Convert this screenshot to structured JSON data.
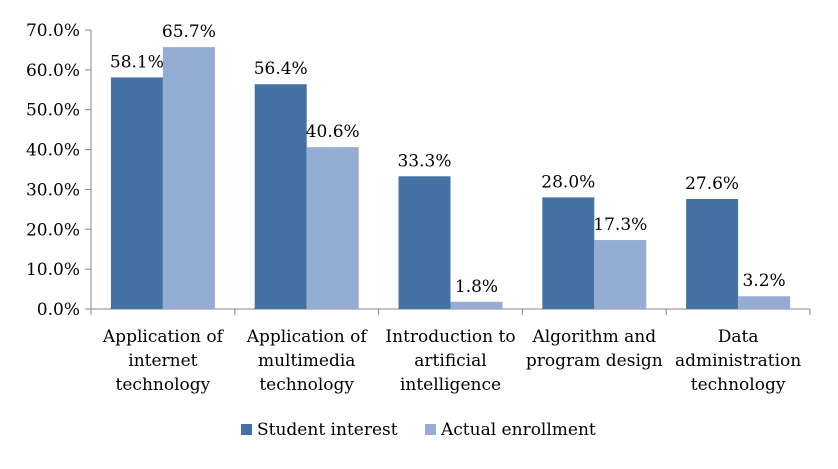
{
  "chart_data": {
    "type": "bar",
    "title": "",
    "xlabel": "",
    "ylabel": "",
    "ylim": [
      0,
      70
    ],
    "yticks": [
      "0.0%",
      "10.0%",
      "20.0%",
      "30.0%",
      "40.0%",
      "50.0%",
      "60.0%",
      "70.0%"
    ],
    "categories": [
      [
        "Application of",
        "internet",
        "technology"
      ],
      [
        "Application of",
        "multimedia",
        "technology"
      ],
      [
        "Introduction to",
        "artificial",
        "intelligence"
      ],
      [
        "Algorithm and",
        "program design"
      ],
      [
        "Data",
        "administration",
        "technology"
      ]
    ],
    "series": [
      {
        "name": "Student interest",
        "color": "#4472a4",
        "values": [
          58.1,
          56.4,
          33.3,
          28.0,
          27.6
        ],
        "labels": [
          "58.1%",
          "56.4%",
          "33.3%",
          "28.0%",
          "27.6%"
        ]
      },
      {
        "name": "Actual enrollment",
        "color": "#95acd3",
        "values": [
          65.7,
          40.6,
          1.8,
          17.3,
          3.2
        ],
        "labels": [
          "65.7%",
          "40.6%",
          "1.8%",
          "17.3%",
          "3.2%"
        ]
      }
    ],
    "legend": "bottom",
    "grid": false
  }
}
